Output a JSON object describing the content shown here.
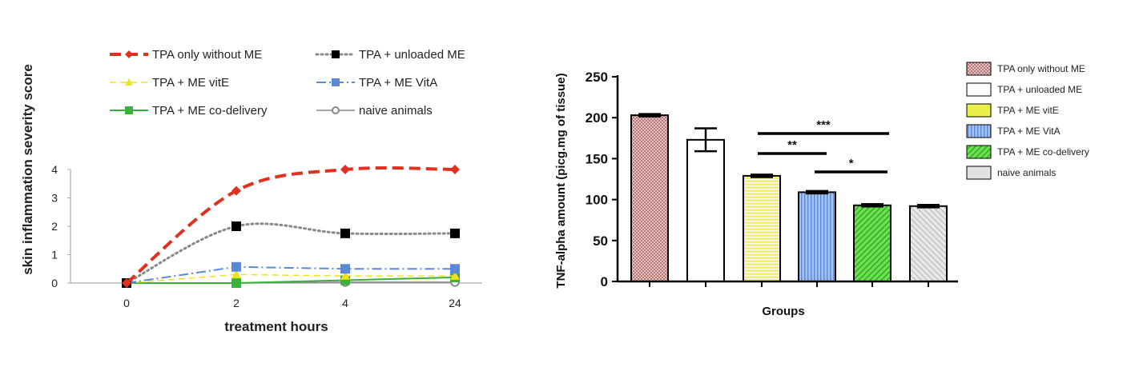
{
  "chart_data": [
    {
      "type": "line",
      "title": "",
      "xlabel": "treatment hours",
      "ylabel": "skin inflammation severity score",
      "categories": [
        "0",
        "2",
        "4",
        "24"
      ],
      "yticks": [
        "0",
        "1",
        "2",
        "3",
        "4"
      ],
      "ylim": [
        0,
        4
      ],
      "grid": false,
      "legend_position": "top",
      "series": [
        {
          "name": "TPA only without ME",
          "values": [
            0,
            3.25,
            4,
            4
          ],
          "color": "#e03020",
          "dash": "14,7",
          "width": 4,
          "marker": "diamond",
          "marker_color": "#e03020"
        },
        {
          "name": "TPA + unloaded ME",
          "values": [
            0,
            2,
            1.75,
            1.75
          ],
          "color": "#888888",
          "dash": "2,4",
          "width": 3,
          "marker": "square",
          "marker_color": "#000000"
        },
        {
          "name": "TPA + ME vitE",
          "values": [
            0,
            0.3,
            0.25,
            0.25
          ],
          "color": "#f0e020",
          "dash": "8,5",
          "width": 1.5,
          "marker": "triangle",
          "marker_color": "#f0e020"
        },
        {
          "name": "TPA + ME VitA",
          "values": [
            0,
            0.57,
            0.5,
            0.5
          ],
          "color": "#5a8ad6",
          "dash": "12,4,2,4",
          "width": 2,
          "marker": "square",
          "marker_color": "#5a8ad6"
        },
        {
          "name": "TPA + ME co-delivery",
          "values": [
            0,
            0,
            0.1,
            0.2
          ],
          "color": "#3ab03a",
          "dash": "",
          "width": 2,
          "marker": "square",
          "marker_color": "#3ab03a"
        },
        {
          "name": "naive animals",
          "values": [
            0,
            0,
            0.03,
            0.03
          ],
          "color": "#888888",
          "dash": "",
          "width": 1.5,
          "marker": "circle",
          "marker_color": "#888888"
        }
      ]
    },
    {
      "type": "bar",
      "title": "",
      "xlabel": "Groups",
      "ylabel": "TNF-alpha amount (picg.mg of tissue)",
      "ylim": [
        0,
        250
      ],
      "yticks": [
        "0",
        "50",
        "100",
        "150",
        "200",
        "250"
      ],
      "grid": false,
      "legend_position": "right",
      "categories": [
        "TPA only without ME",
        "TPA + unloaded ME",
        "TPA + ME vitE",
        "TPA + ME VitA",
        "TPA + ME co-delivery",
        "naive animals"
      ],
      "values": [
        203,
        173,
        129,
        109,
        93,
        92
      ],
      "errors": [
        1.5,
        14,
        1.5,
        1.5,
        1.5,
        1.5
      ],
      "fills": [
        "#c98d8d",
        "#ffffff",
        "#eaf04a",
        "#8db0e6",
        "#66d84a",
        "#dcdcdc"
      ],
      "significance": [
        {
          "label": "***",
          "from": 2,
          "to": 4
        },
        {
          "label": "**",
          "from": 2,
          "to": 3
        },
        {
          "label": "*",
          "from": 3,
          "to": 4
        }
      ]
    }
  ]
}
